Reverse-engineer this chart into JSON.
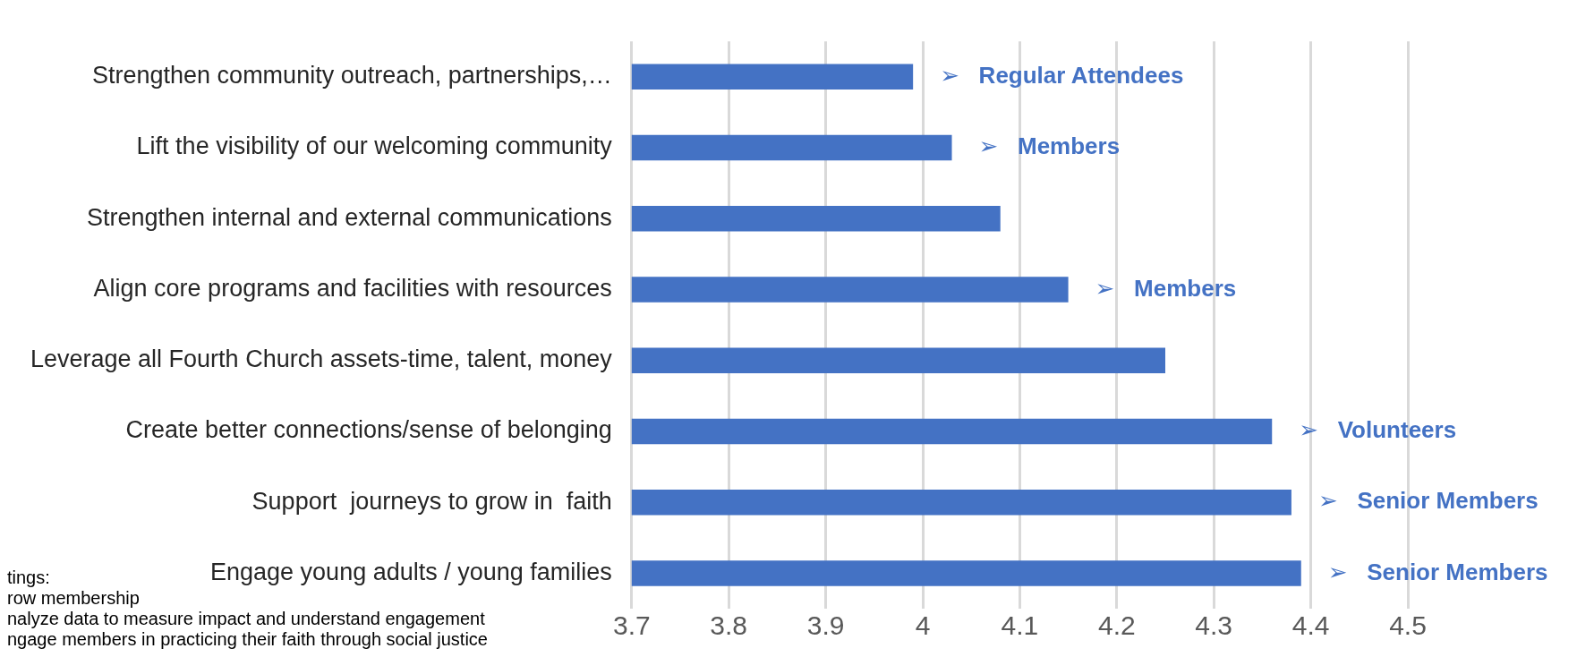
{
  "chart_data": {
    "type": "bar",
    "orientation": "horizontal",
    "categories": [
      "Strengthen community outreach, partnerships,…",
      "Lift the visibility of our welcoming community",
      "Strengthen internal and external communications",
      "Align core programs and facilities with resources",
      "Leverage all Fourth Church assets-time, talent, money",
      "Create better connections/sense of belonging",
      "Support  journeys to grow in  faith",
      "Engage young adults / young families"
    ],
    "values": [
      3.99,
      4.03,
      4.08,
      4.15,
      4.25,
      4.36,
      4.38,
      4.39
    ],
    "color": "#4472c4",
    "xlim": [
      3.7,
      4.5
    ],
    "xticks": [
      3.7,
      3.8,
      3.9,
      4,
      4.1,
      4.2,
      4.3,
      4.4,
      4.5
    ],
    "grid": "x",
    "legend": false,
    "annotations": [
      {
        "text": "➢   Regular Attendees",
        "x": 3.99,
        "y": "Strengthen community outreach, partnerships,…"
      },
      {
        "text": "➢   Members",
        "x": 4.03,
        "y": "Lift the visibility of our welcoming community"
      },
      {
        "text": "➢   Members",
        "x": 4.15,
        "y": "Align core programs and facilities with resources"
      },
      {
        "text": "➢   Volunteers",
        "x": 4.36,
        "y": "Create better connections/sense of belonging"
      },
      {
        "text": "➢   Senior Members",
        "x": 4.38,
        "y": "Support  journeys to grow in  faith"
      },
      {
        "text": "➢   Senior Members",
        "x": 4.39,
        "y": "Engage young adults / young families"
      },
      "tings:",
      "row membership",
      "nalyze data to measure impact and understand engagement",
      "ngage members in practicing their faith through social justice"
    ]
  }
}
